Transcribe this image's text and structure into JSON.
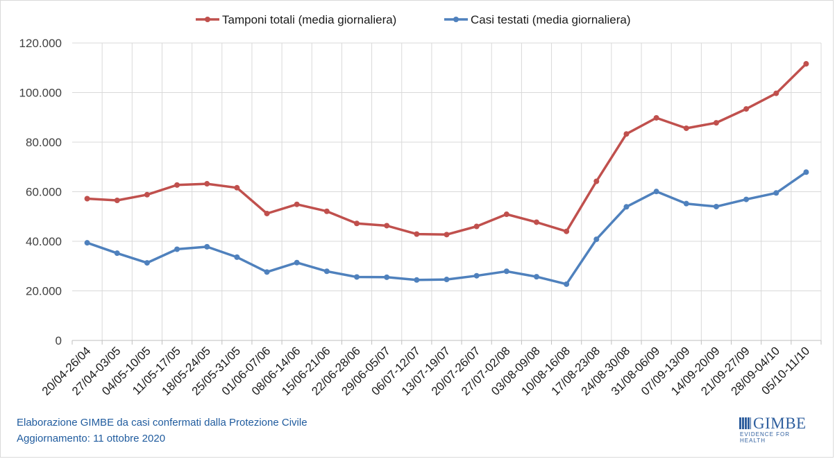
{
  "chart_data": {
    "type": "line",
    "title": "",
    "xlabel": "",
    "ylabel": "",
    "ylim": [
      0,
      120000
    ],
    "yticks": [
      "0",
      "20.000",
      "40.000",
      "60.000",
      "80.000",
      "100.000",
      "120.000"
    ],
    "grid": true,
    "legend_position": "top",
    "categories": [
      "20/04-26/04",
      "27/04-03/05",
      "04/05-10/05",
      "11/05-17/05",
      "18/05-24/05",
      "25/05-31/05",
      "01/06-07/06",
      "08/06-14/06",
      "15/06-21/06",
      "22/06-28/06",
      "29/06-05/07",
      "06/07-12/07",
      "13/07-19/07",
      "20/07-26/07",
      "27/07-02/08",
      "03/08-09/08",
      "10/08-16/08",
      "17/08-23/08",
      "24/08-30/08",
      "31/08-06/09",
      "07/09-13/09",
      "14/09-20/09",
      "21/09-27/09",
      "28/09-04/10",
      "05/10-11/10"
    ],
    "series": [
      {
        "name": "Tamponi totali (media giornaliera)",
        "color": "#c0504d",
        "values": [
          57200,
          56500,
          58800,
          62700,
          63200,
          61600,
          51200,
          54900,
          52100,
          47200,
          46300,
          42900,
          42700,
          46000,
          50900,
          47700,
          44000,
          64200,
          83300,
          89800,
          85600,
          87800,
          93400,
          99700,
          111600
        ]
      },
      {
        "name": "Casi testati (media giornaliera)",
        "color": "#4f81bd",
        "values": [
          39400,
          35200,
          31300,
          36800,
          37800,
          33600,
          27600,
          31400,
          27900,
          25600,
          25500,
          24400,
          24600,
          26100,
          27900,
          25700,
          22700,
          40800,
          53900,
          60100,
          55200,
          54000,
          56900,
          59500,
          67900
        ]
      }
    ]
  },
  "footer": {
    "line1": "Elaborazione GIMBE da casi confermati dalla Protezione Civile",
    "line2": "Aggiornamento:  11 ottobre 2020"
  },
  "logo": {
    "name": "GIMBE",
    "tagline": "EVIDENCE FOR HEALTH",
    "icon": "gimbe-logo-icon"
  }
}
